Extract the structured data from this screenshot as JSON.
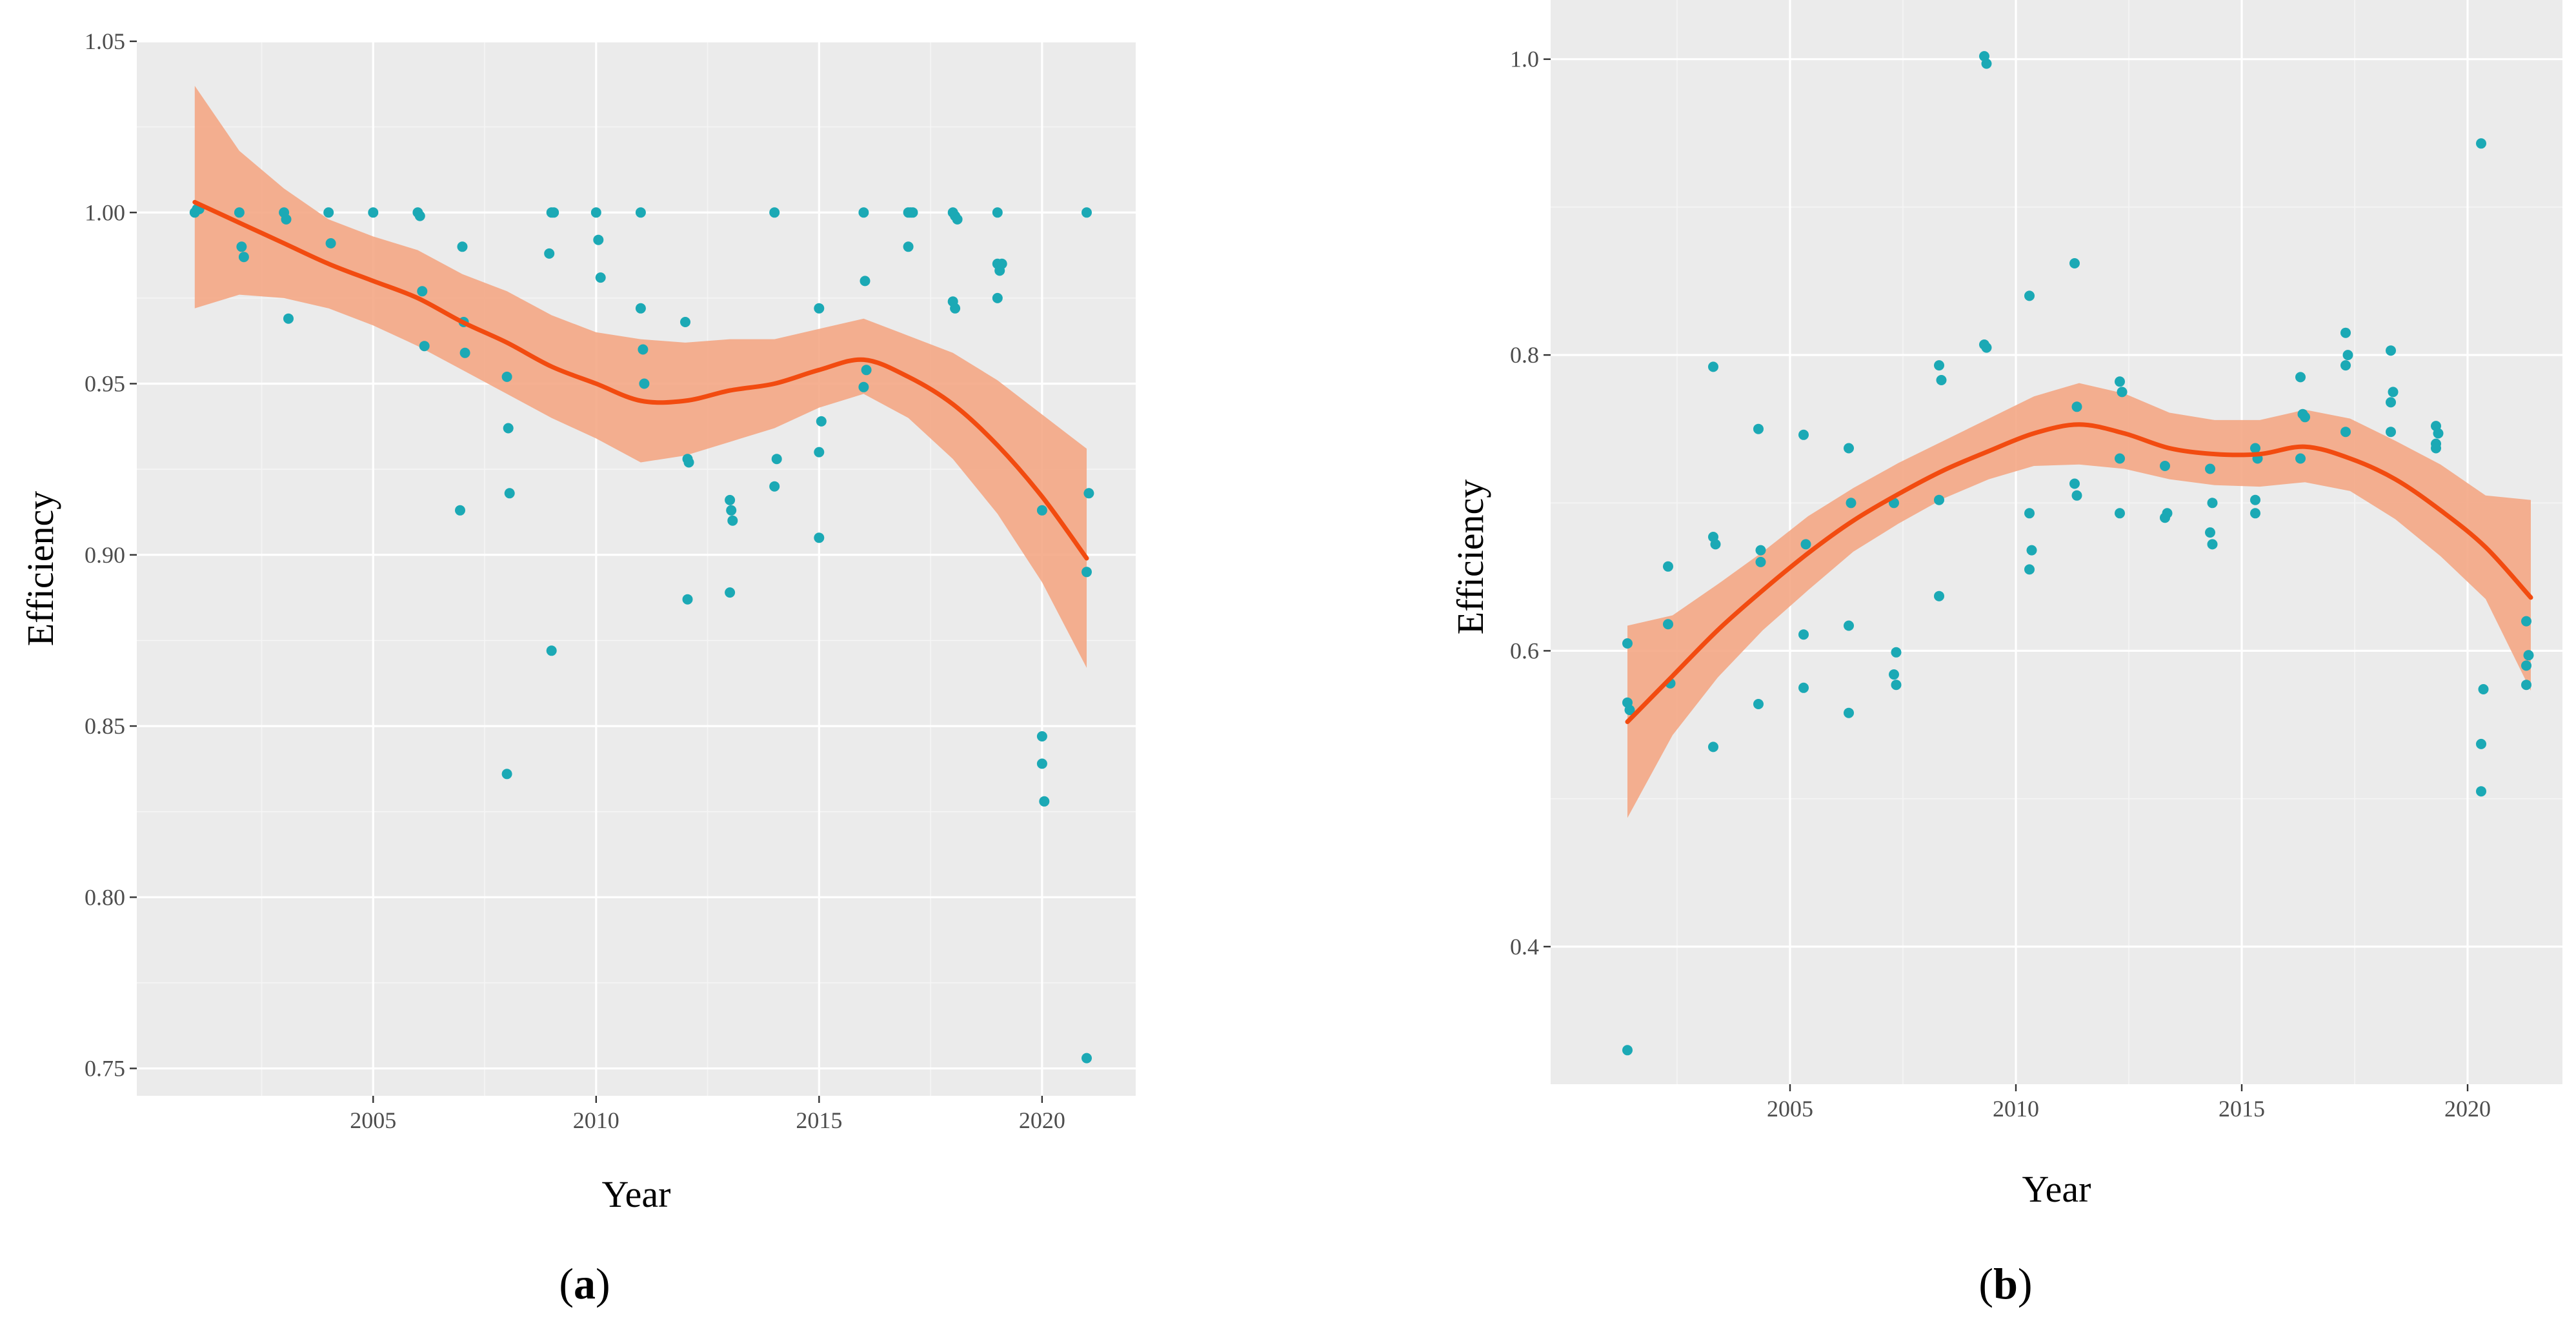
{
  "figure": {
    "colors": {
      "point": "#1ba9b5",
      "line": "#f24b10",
      "ribbon": "#f4a582",
      "panel": "#ebebeb"
    }
  },
  "chart_data": [
    {
      "type": "scatter",
      "panel": "a",
      "caption": {
        "open": "(",
        "letter": "a",
        "close": ")"
      },
      "xlabel": "Year",
      "ylabel": "Efficiency",
      "xlim": [
        1999.7,
        2022.1
      ],
      "ylim": [
        0.742,
        1.05
      ],
      "xticks": [
        2005,
        2010,
        2015,
        2020
      ],
      "xtick_labels": [
        "2005",
        "2010",
        "2015",
        "2020"
      ],
      "yticks": [
        0.75,
        0.8,
        0.85,
        0.9,
        0.95,
        1.0,
        1.05
      ],
      "ytick_labels": [
        "0.75",
        "0.80",
        "0.85",
        "0.90",
        "0.95",
        "1.00",
        "1.05"
      ],
      "grid": true,
      "points": [
        [
          2001.0,
          1.0
        ],
        [
          2001.05,
          1.001
        ],
        [
          2001.1,
          1.001
        ],
        [
          2002.0,
          1.0
        ],
        [
          2002.05,
          0.99
        ],
        [
          2002.1,
          0.987
        ],
        [
          2003.0,
          1.0
        ],
        [
          2003.05,
          0.998
        ],
        [
          2003.1,
          0.969
        ],
        [
          2004.0,
          1.0
        ],
        [
          2004.05,
          0.991
        ],
        [
          2005.0,
          1.0
        ],
        [
          2006.0,
          1.0
        ],
        [
          2006.05,
          0.999
        ],
        [
          2006.1,
          0.977
        ],
        [
          2006.15,
          0.961
        ],
        [
          2007.0,
          0.99
        ],
        [
          2007.03,
          0.968
        ],
        [
          2007.06,
          0.959
        ],
        [
          2006.95,
          0.913
        ],
        [
          2008.0,
          0.952
        ],
        [
          2008.03,
          0.937
        ],
        [
          2008.06,
          0.918
        ],
        [
          2008.0,
          0.836
        ],
        [
          2009.0,
          1.0
        ],
        [
          2009.05,
          1.0
        ],
        [
          2008.95,
          0.988
        ],
        [
          2009.0,
          0.872
        ],
        [
          2010.0,
          1.0
        ],
        [
          2010.05,
          0.992
        ],
        [
          2010.1,
          0.981
        ],
        [
          2011.0,
          1.0
        ],
        [
          2011.0,
          0.972
        ],
        [
          2011.05,
          0.96
        ],
        [
          2011.08,
          0.95
        ],
        [
          2012.0,
          0.968
        ],
        [
          2012.05,
          0.928
        ],
        [
          2012.08,
          0.927
        ],
        [
          2012.05,
          0.887
        ],
        [
          2013.0,
          0.916
        ],
        [
          2013.03,
          0.913
        ],
        [
          2013.06,
          0.91
        ],
        [
          2013.0,
          0.889
        ],
        [
          2014.0,
          1.0
        ],
        [
          2014.05,
          0.928
        ],
        [
          2014.0,
          0.92
        ],
        [
          2015.0,
          0.972
        ],
        [
          2015.05,
          0.939
        ],
        [
          2015.0,
          0.93
        ],
        [
          2015.0,
          0.905
        ],
        [
          2016.0,
          1.0
        ],
        [
          2016.03,
          0.98
        ],
        [
          2016.06,
          0.954
        ],
        [
          2016.0,
          0.949
        ],
        [
          2017.0,
          1.0
        ],
        [
          2017.05,
          1.0
        ],
        [
          2017.1,
          1.0
        ],
        [
          2017.0,
          0.99
        ],
        [
          2018.0,
          1.0
        ],
        [
          2018.05,
          0.999
        ],
        [
          2018.1,
          0.998
        ],
        [
          2018.0,
          0.974
        ],
        [
          2018.05,
          0.972
        ],
        [
          2019.0,
          1.0
        ],
        [
          2019.0,
          0.985
        ],
        [
          2019.05,
          0.983
        ],
        [
          2019.1,
          0.985
        ],
        [
          2019.0,
          0.975
        ],
        [
          2020.0,
          0.913
        ],
        [
          2020.0,
          0.847
        ],
        [
          2020.0,
          0.839
        ],
        [
          2020.05,
          0.828
        ],
        [
          2021.0,
          1.0
        ],
        [
          2021.05,
          0.918
        ],
        [
          2021.0,
          0.895
        ],
        [
          2021.0,
          0.753
        ]
      ],
      "smooth": {
        "x": [
          2001,
          2002,
          2003,
          2004,
          2005,
          2006,
          2007,
          2008,
          2009,
          2010,
          2011,
          2012,
          2013,
          2014,
          2015,
          2016,
          2017,
          2018,
          2019,
          2020,
          2021
        ],
        "y": [
          1.003,
          0.997,
          0.991,
          0.985,
          0.98,
          0.975,
          0.968,
          0.962,
          0.955,
          0.95,
          0.945,
          0.945,
          0.948,
          0.95,
          0.954,
          0.957,
          0.952,
          0.944,
          0.932,
          0.917,
          0.899
        ],
        "lower": [
          0.972,
          0.976,
          0.975,
          0.972,
          0.967,
          0.961,
          0.954,
          0.947,
          0.94,
          0.934,
          0.927,
          0.929,
          0.933,
          0.937,
          0.943,
          0.947,
          0.94,
          0.928,
          0.912,
          0.892,
          0.867
        ],
        "upper": [
          1.037,
          1.018,
          1.007,
          0.998,
          0.993,
          0.989,
          0.982,
          0.977,
          0.97,
          0.965,
          0.963,
          0.962,
          0.963,
          0.963,
          0.966,
          0.969,
          0.964,
          0.959,
          0.951,
          0.941,
          0.931
        ]
      }
    },
    {
      "type": "scatter",
      "panel": "b",
      "caption": {
        "open": "(",
        "letter": "b",
        "close": ")"
      },
      "xlabel": "Year",
      "ylabel": "Efficiency",
      "xlim": [
        1999.7,
        2022.1
      ],
      "ylim": [
        0.307,
        1.04
      ],
      "xticks": [
        2005,
        2010,
        2015,
        2020
      ],
      "xtick_labels": [
        "2005",
        "2010",
        "2015",
        "2020"
      ],
      "yticks": [
        0.4,
        0.6,
        0.8,
        1.0
      ],
      "ytick_labels": [
        "0.4",
        "0.6",
        "0.8",
        "1.0"
      ],
      "grid": true,
      "points": [
        [
          2001.4,
          0.605
        ],
        [
          2001.4,
          0.565
        ],
        [
          2001.45,
          0.56
        ],
        [
          2001.4,
          0.33
        ],
        [
          2002.3,
          0.657
        ],
        [
          2002.3,
          0.618
        ],
        [
          2002.35,
          0.578
        ],
        [
          2003.3,
          0.792
        ],
        [
          2003.3,
          0.677
        ],
        [
          2003.35,
          0.672
        ],
        [
          2003.3,
          0.535
        ],
        [
          2004.3,
          0.75
        ],
        [
          2004.35,
          0.668
        ],
        [
          2004.35,
          0.66
        ],
        [
          2004.3,
          0.564
        ],
        [
          2005.3,
          0.746
        ],
        [
          2005.35,
          0.672
        ],
        [
          2005.3,
          0.611
        ],
        [
          2005.3,
          0.575
        ],
        [
          2006.3,
          0.737
        ],
        [
          2006.35,
          0.7
        ],
        [
          2006.3,
          0.617
        ],
        [
          2006.3,
          0.558
        ],
        [
          2007.3,
          0.7
        ],
        [
          2007.35,
          0.599
        ],
        [
          2007.3,
          0.584
        ],
        [
          2007.35,
          0.577
        ],
        [
          2008.3,
          0.793
        ],
        [
          2008.35,
          0.783
        ],
        [
          2008.3,
          0.702
        ],
        [
          2008.3,
          0.637
        ],
        [
          2009.3,
          1.002
        ],
        [
          2009.35,
          0.997
        ],
        [
          2009.3,
          0.807
        ],
        [
          2009.35,
          0.805
        ],
        [
          2010.3,
          0.84
        ],
        [
          2010.3,
          0.693
        ],
        [
          2010.35,
          0.668
        ],
        [
          2010.3,
          0.655
        ],
        [
          2011.3,
          0.862
        ],
        [
          2011.35,
          0.765
        ],
        [
          2011.3,
          0.713
        ],
        [
          2011.35,
          0.705
        ],
        [
          2012.3,
          0.782
        ],
        [
          2012.35,
          0.775
        ],
        [
          2012.3,
          0.73
        ],
        [
          2012.3,
          0.693
        ],
        [
          2013.3,
          0.725
        ],
        [
          2013.35,
          0.693
        ],
        [
          2013.3,
          0.69
        ],
        [
          2014.3,
          0.723
        ],
        [
          2014.35,
          0.7
        ],
        [
          2014.3,
          0.68
        ],
        [
          2014.35,
          0.672
        ],
        [
          2015.3,
          0.737
        ],
        [
          2015.35,
          0.73
        ],
        [
          2015.3,
          0.702
        ],
        [
          2015.3,
          0.693
        ],
        [
          2016.3,
          0.785
        ],
        [
          2016.35,
          0.76
        ],
        [
          2016.4,
          0.758
        ],
        [
          2016.3,
          0.73
        ],
        [
          2017.3,
          0.815
        ],
        [
          2017.35,
          0.8
        ],
        [
          2017.3,
          0.793
        ],
        [
          2017.3,
          0.748
        ],
        [
          2018.3,
          0.803
        ],
        [
          2018.35,
          0.775
        ],
        [
          2018.3,
          0.768
        ],
        [
          2018.3,
          0.748
        ],
        [
          2019.3,
          0.752
        ],
        [
          2019.35,
          0.747
        ],
        [
          2019.3,
          0.74
        ],
        [
          2019.3,
          0.737
        ],
        [
          2020.3,
          0.943
        ],
        [
          2020.35,
          0.574
        ],
        [
          2020.3,
          0.537
        ],
        [
          2020.3,
          0.505
        ],
        [
          2021.3,
          0.62
        ],
        [
          2021.35,
          0.597
        ],
        [
          2021.3,
          0.59
        ],
        [
          2021.3,
          0.577
        ]
      ],
      "smooth": {
        "x": [
          2001.4,
          2002.4,
          2003.4,
          2004.4,
          2005.4,
          2006.4,
          2007.4,
          2008.4,
          2009.4,
          2010.4,
          2011.4,
          2012.4,
          2013.4,
          2014.4,
          2015.4,
          2016.4,
          2017.4,
          2018.4,
          2019.4,
          2020.4,
          2021.4
        ],
        "y": [
          0.552,
          0.583,
          0.614,
          0.641,
          0.666,
          0.688,
          0.706,
          0.722,
          0.735,
          0.747,
          0.753,
          0.747,
          0.737,
          0.733,
          0.733,
          0.738,
          0.73,
          0.716,
          0.695,
          0.67,
          0.636
        ],
        "lower": [
          0.487,
          0.543,
          0.582,
          0.614,
          0.641,
          0.667,
          0.686,
          0.703,
          0.716,
          0.725,
          0.726,
          0.723,
          0.716,
          0.712,
          0.711,
          0.714,
          0.708,
          0.689,
          0.664,
          0.635,
          0.573
        ],
        "upper": [
          0.617,
          0.624,
          0.645,
          0.667,
          0.691,
          0.71,
          0.727,
          0.742,
          0.757,
          0.772,
          0.781,
          0.774,
          0.761,
          0.756,
          0.756,
          0.763,
          0.757,
          0.742,
          0.726,
          0.705,
          0.702
        ]
      }
    }
  ]
}
